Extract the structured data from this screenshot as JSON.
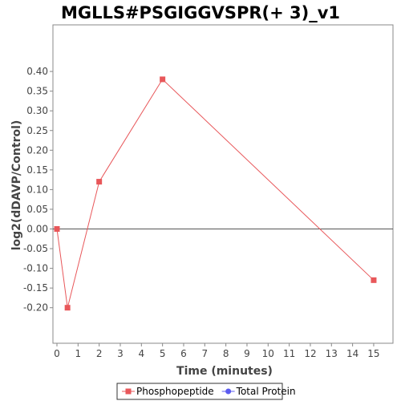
{
  "chart_data": {
    "type": "line",
    "title": "MGLLS#PSGIGGVSPR(+ 3)_v1",
    "xlabel": "Time (minutes)",
    "ylabel": "log2(dDAVP/Control)",
    "xlim": [
      0,
      15.7
    ],
    "ylim": [
      -0.23,
      0.41
    ],
    "x_ticks": [
      0,
      1,
      2,
      3,
      4,
      5,
      6,
      7,
      8,
      9,
      10,
      11,
      12,
      13,
      14,
      15
    ],
    "y_ticks": [
      0.4,
      0.35,
      0.3,
      0.25,
      0.2,
      0.15,
      0.1,
      0.05,
      0.0,
      -0.05,
      -0.1,
      -0.15,
      -0.2
    ],
    "y_tick_labels": [
      "0.40",
      "0.35",
      "0.30",
      "0.25",
      "0.20",
      "0.15",
      "0.10",
      "0.05",
      "0.00",
      "-0.05",
      "-0.10",
      "-0.15",
      "-0.20"
    ],
    "zero_line": true,
    "grid": false,
    "legend_position": "bottom-center",
    "series": [
      {
        "name": "Phosphopeptide",
        "color": "#e8575a",
        "marker": "square",
        "x": [
          0,
          0.5,
          2,
          5,
          15
        ],
        "y": [
          0.0,
          -0.2,
          0.12,
          0.38,
          -0.13
        ]
      },
      {
        "name": "Total Protein",
        "color": "#5b5bf0",
        "marker": "circle",
        "x": [],
        "y": []
      }
    ]
  }
}
